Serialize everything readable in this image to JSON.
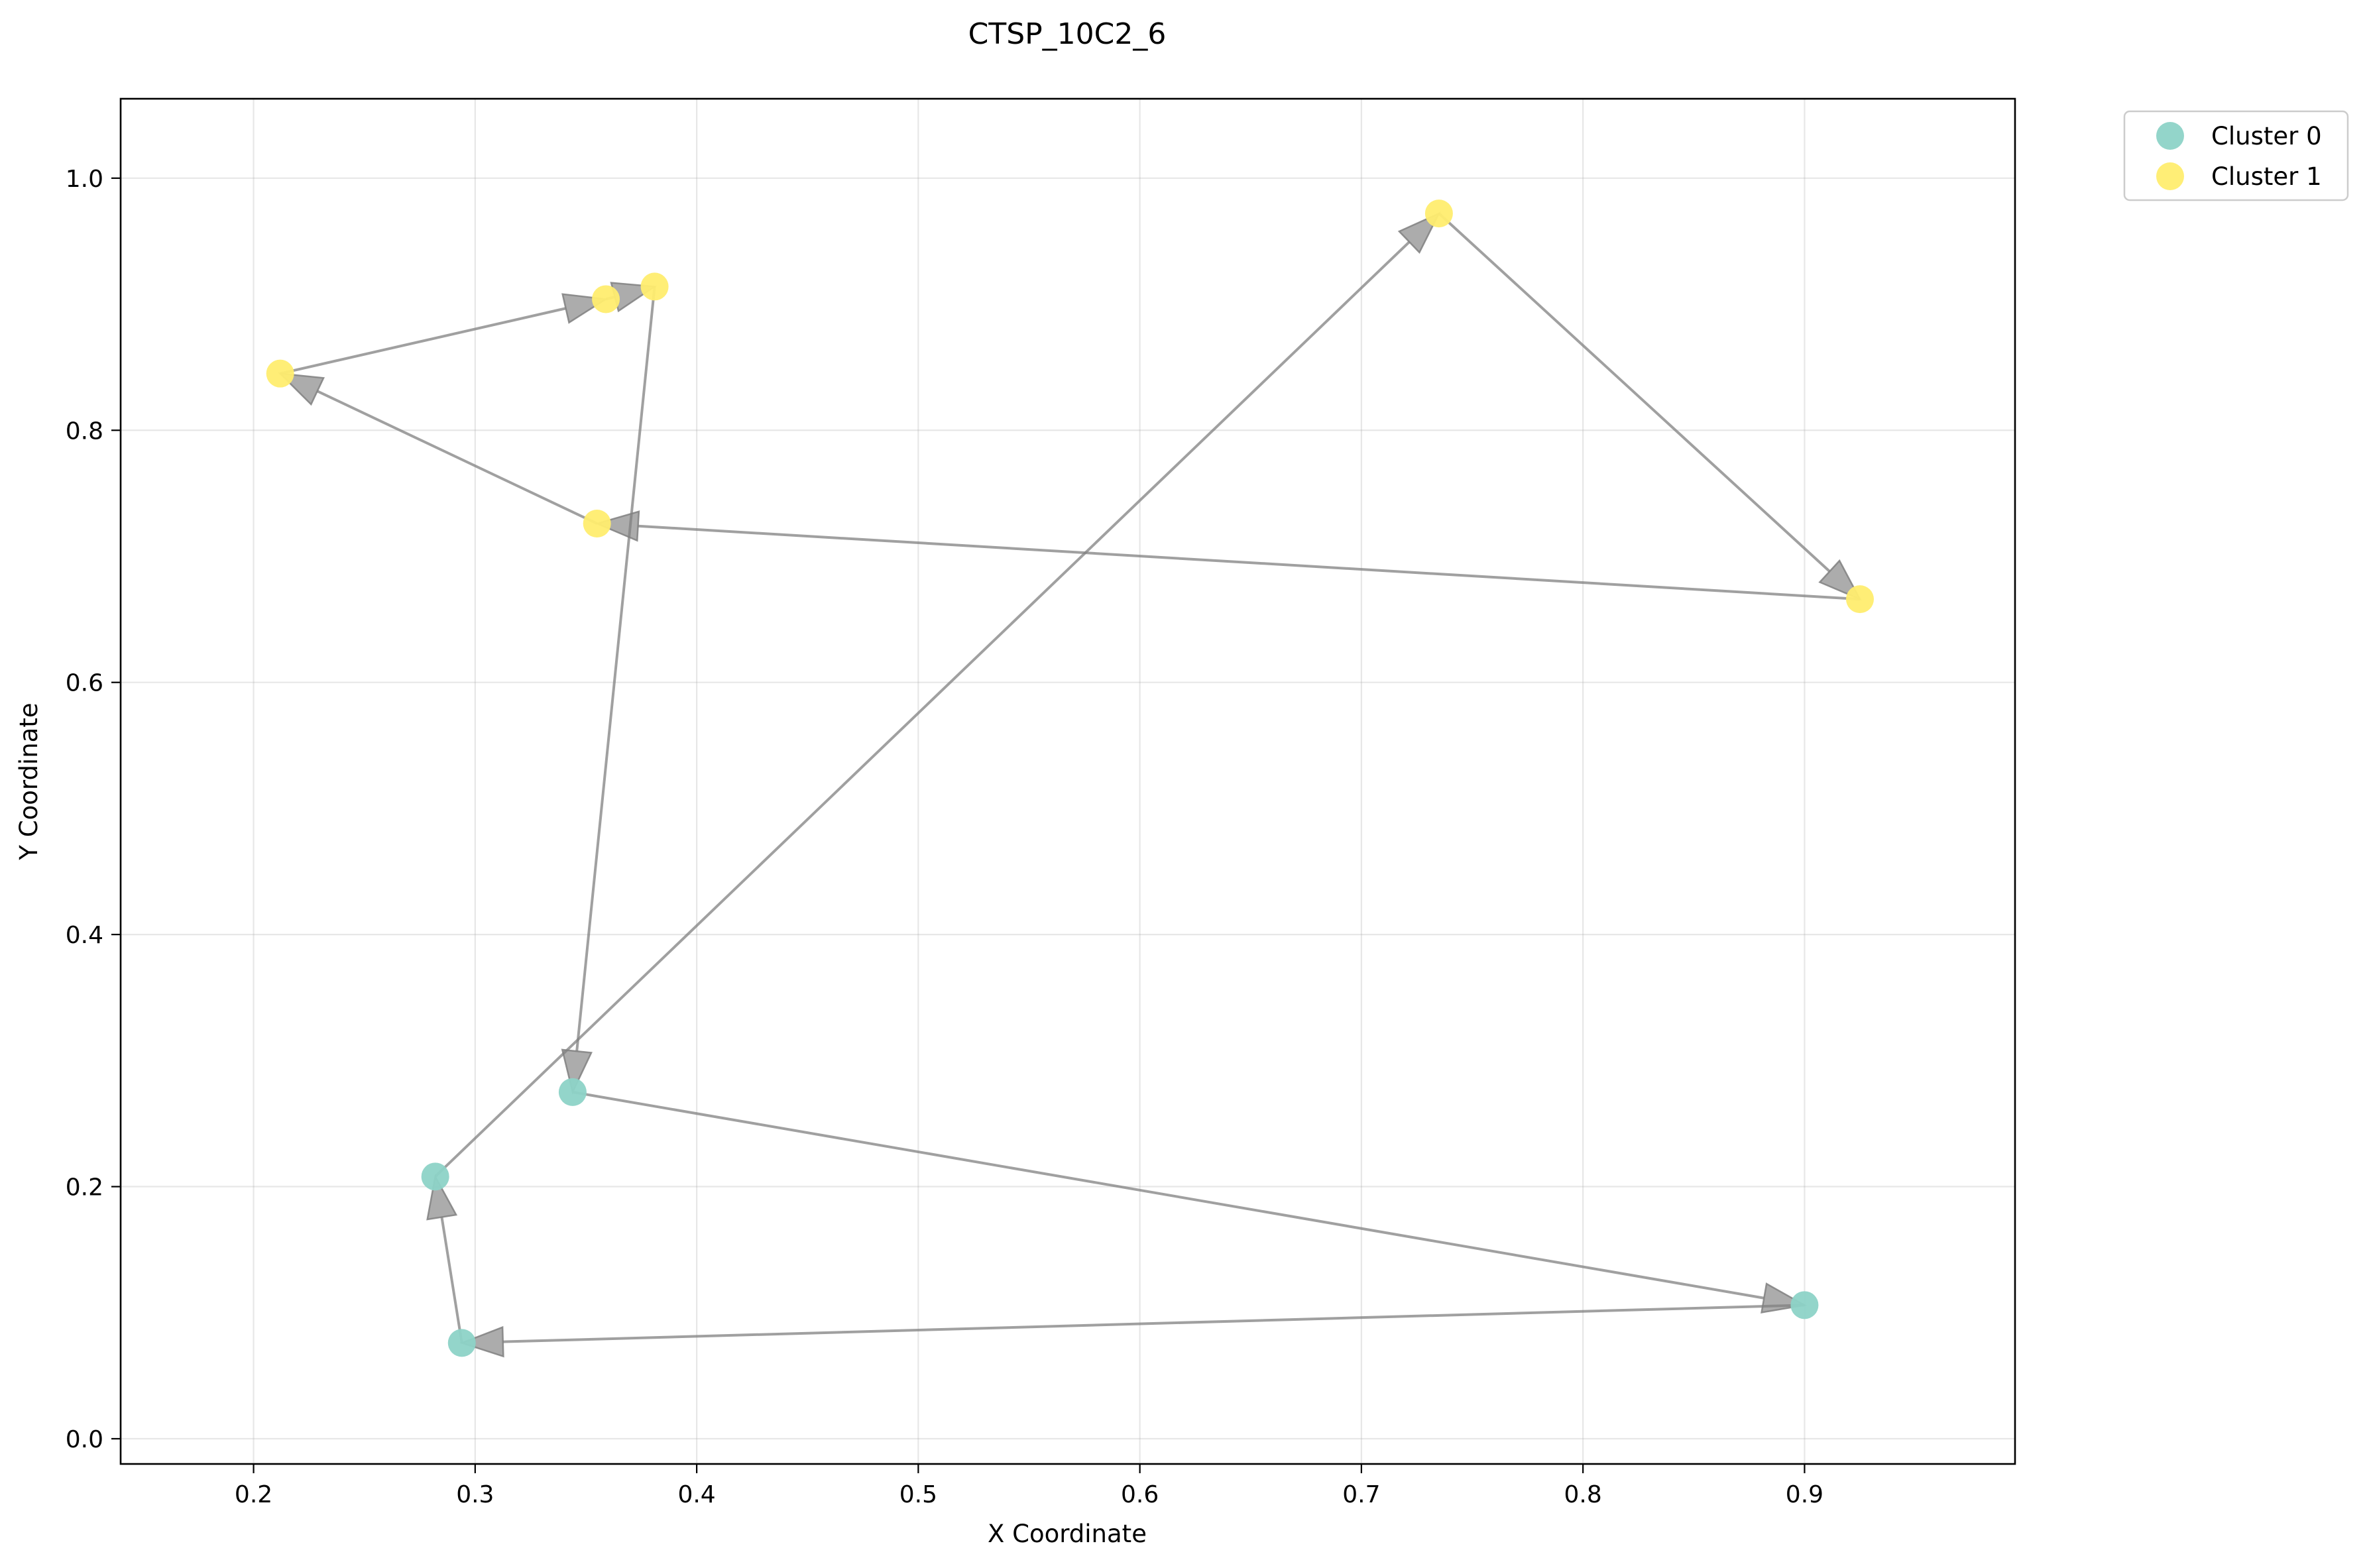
{
  "chart_data": {
    "type": "scatter",
    "title": "CTSP_10C2_6",
    "xlabel": "X Coordinate",
    "ylabel": "Y Coordinate",
    "xlim": [
      0.14,
      0.995
    ],
    "ylim": [
      -0.02,
      1.063
    ],
    "xticks": [
      0.2,
      0.3,
      0.4,
      0.5,
      0.6,
      0.7,
      0.8,
      0.9
    ],
    "xtick_labels": [
      "0.2",
      "0.3",
      "0.4",
      "0.5",
      "0.6",
      "0.7",
      "0.8",
      "0.9"
    ],
    "yticks": [
      0.0,
      0.2,
      0.4,
      0.6,
      0.8,
      1.0
    ],
    "ytick_labels": [
      "0.0",
      "0.2",
      "0.4",
      "0.6",
      "0.8",
      "1.0"
    ],
    "grid": true,
    "legend_position": "outside-top-right",
    "series": [
      {
        "name": "Cluster 0",
        "color": "#8dd3c7",
        "points": [
          {
            "x": 0.344,
            "y": 0.275
          },
          {
            "x": 0.9,
            "y": 0.106
          },
          {
            "x": 0.294,
            "y": 0.076
          },
          {
            "x": 0.282,
            "y": 0.208
          }
        ]
      },
      {
        "name": "Cluster 1",
        "color": "#ffed6f",
        "points": [
          {
            "x": 0.735,
            "y": 0.972
          },
          {
            "x": 0.925,
            "y": 0.666
          },
          {
            "x": 0.355,
            "y": 0.726
          },
          {
            "x": 0.212,
            "y": 0.845
          },
          {
            "x": 0.359,
            "y": 0.904
          },
          {
            "x": 0.381,
            "y": 0.914
          }
        ]
      }
    ],
    "route": [
      {
        "x": 0.344,
        "y": 0.275
      },
      {
        "x": 0.9,
        "y": 0.106
      },
      {
        "x": 0.294,
        "y": 0.076
      },
      {
        "x": 0.282,
        "y": 0.208
      },
      {
        "x": 0.735,
        "y": 0.972
      },
      {
        "x": 0.925,
        "y": 0.666
      },
      {
        "x": 0.355,
        "y": 0.726
      },
      {
        "x": 0.212,
        "y": 0.845
      },
      {
        "x": 0.359,
        "y": 0.904
      },
      {
        "x": 0.381,
        "y": 0.914
      },
      {
        "x": 0.344,
        "y": 0.275
      }
    ],
    "route_color": "#808080"
  }
}
